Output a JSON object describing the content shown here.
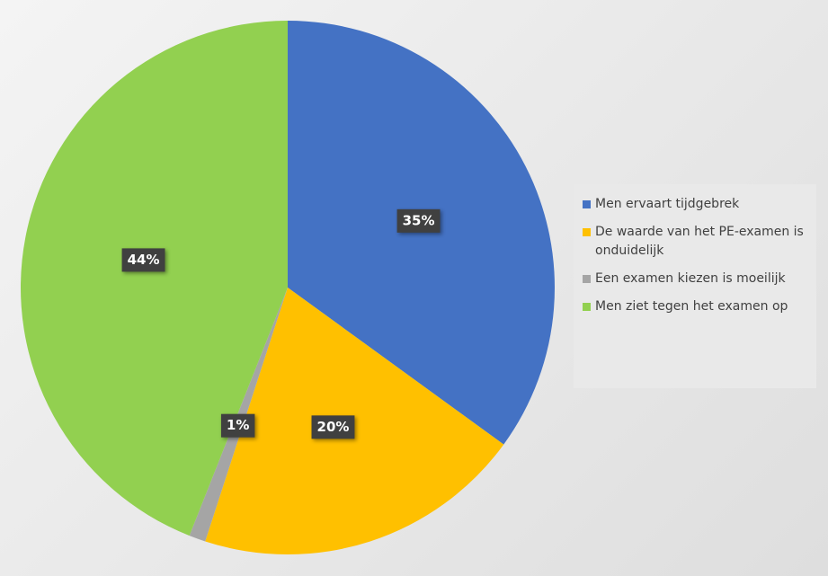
{
  "chart_data": {
    "type": "pie",
    "categories": [
      "Men ervaart tijdgebrek",
      "De waarde van het PE-examen is onduidelijk",
      "Een examen kiezen is moeilijk",
      "Men ziet tegen het examen op"
    ],
    "values": [
      35,
      20,
      1,
      44
    ],
    "value_labels": [
      "35%",
      "20%",
      "1%",
      "44%"
    ],
    "colors": [
      "#4472c4",
      "#ffc000",
      "#a5a5a5",
      "#92d050"
    ],
    "legend": "right"
  }
}
